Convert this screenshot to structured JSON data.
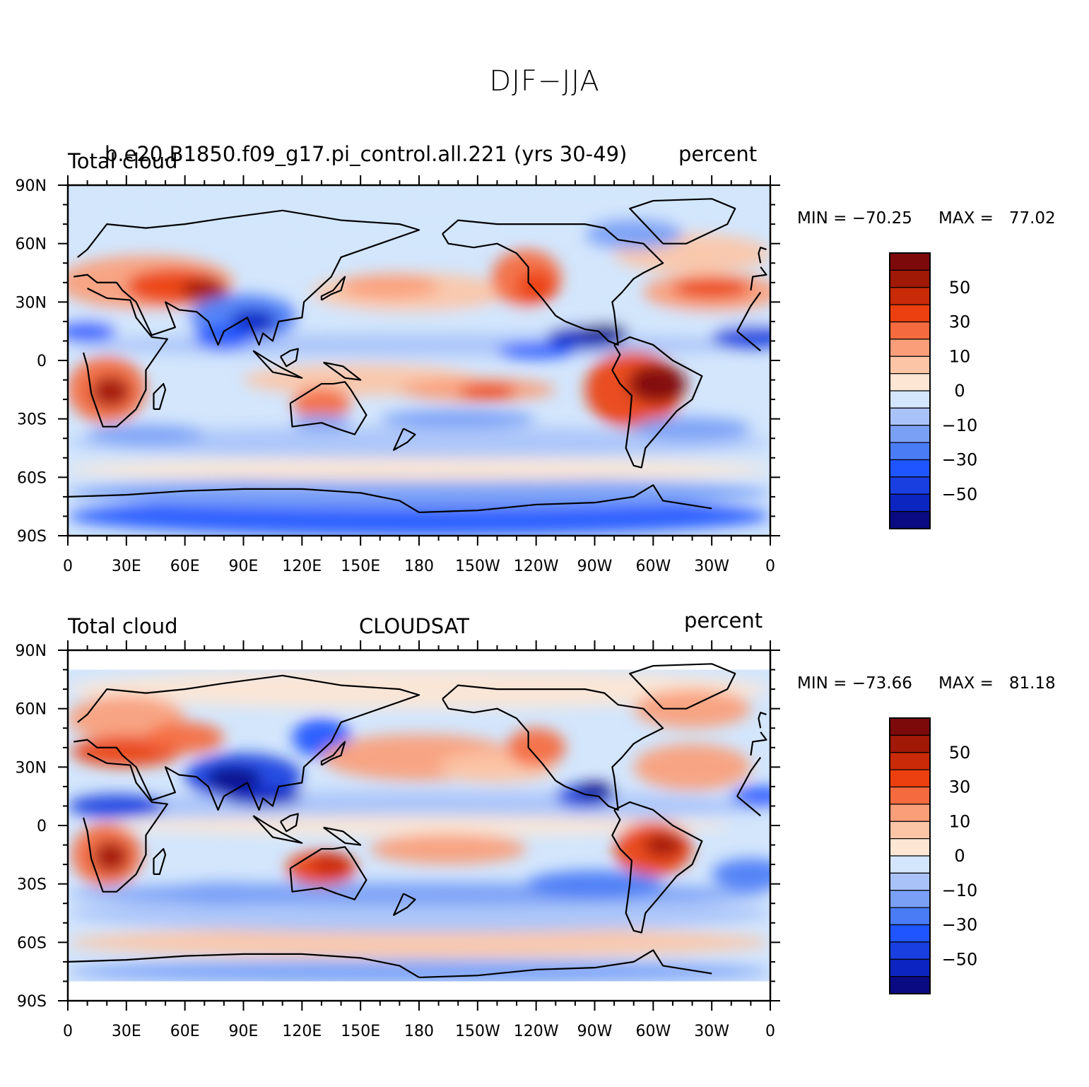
{
  "title": "DJF−JJA",
  "colors": {
    "levels": [
      "#0a0a82",
      "#0c25c0",
      "#1a3fe0",
      "#1f55ff",
      "#4a7cf6",
      "#7aa0f6",
      "#a9c3f8",
      "#d3e6fc",
      "#fde6d4",
      "#fcc6a6",
      "#fa9e7a",
      "#f56a3e",
      "#ec4010",
      "#c92a08",
      "#a01806",
      "#7d0a0a"
    ],
    "coast": "#000000"
  },
  "axes": {
    "lon_ticks": [
      "0",
      "30E",
      "60E",
      "90E",
      "120E",
      "150E",
      "180",
      "150W",
      "120W",
      "90W",
      "60W",
      "30W",
      "0"
    ],
    "lat_ticks": [
      "90N",
      "60N",
      "30N",
      "0",
      "30S",
      "60S",
      "90S"
    ]
  },
  "panels": [
    {
      "left_label": "Total cloud",
      "center_label": "b.e20.B1850.f09_g17.pi_control.all.221 (yrs 30-49)",
      "right_label": "percent",
      "min_label": "MIN = −70.25",
      "max_label": "MAX =   77.02",
      "colorbar_labels": [
        "50",
        "30",
        "10",
        "0",
        "−10",
        "−30",
        "−50"
      ]
    },
    {
      "left_label": "Total cloud",
      "center_label": "CLOUDSAT",
      "right_label": "percent",
      "min_label": "MIN = −73.66",
      "max_label": "MAX =   81.18",
      "colorbar_labels": [
        "50",
        "30",
        "10",
        "0",
        "−10",
        "−30",
        "−50"
      ]
    }
  ]
}
